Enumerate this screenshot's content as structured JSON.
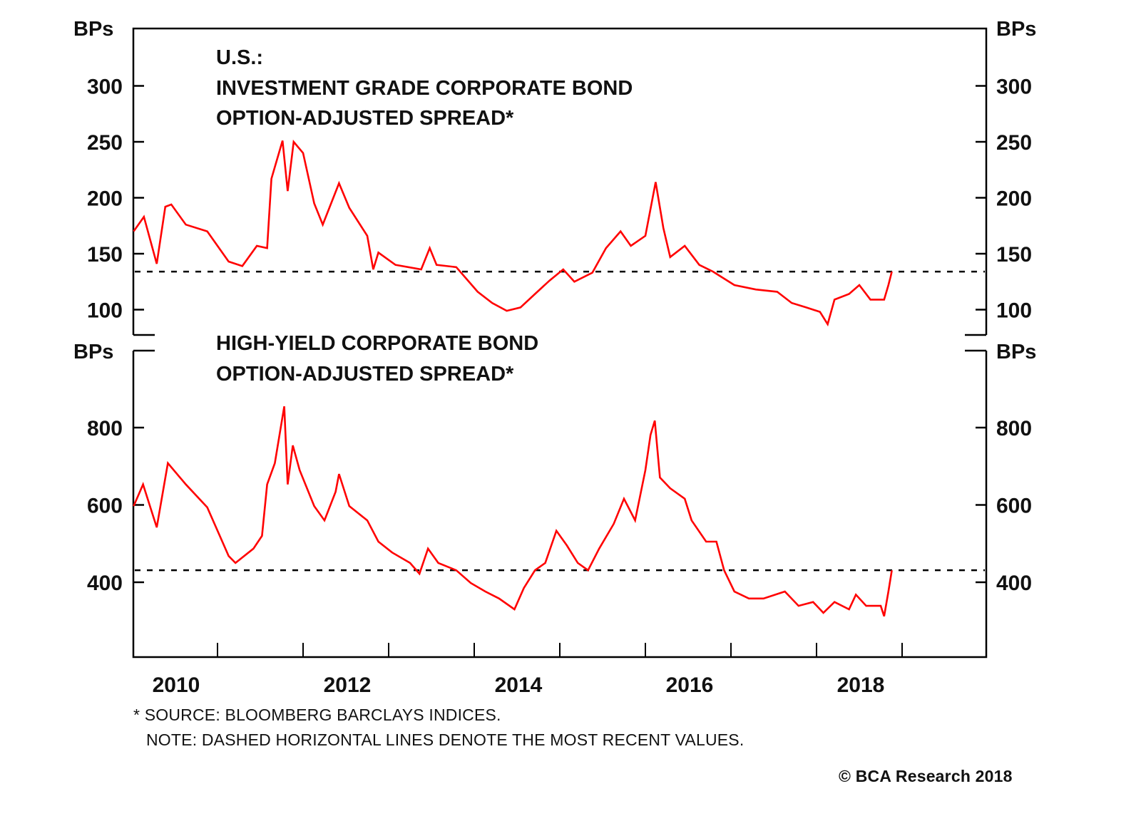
{
  "chart_data": [
    {
      "type": "line",
      "title": "U.S.:\nINVESTMENT GRADE CORPORATE BOND\nOPTION-ADJUSTED SPREAD*",
      "title_lines": [
        "U.S.:",
        "INVESTMENT GRADE CORPORATE BOND",
        "OPTION-ADJUSTED SPREAD*"
      ],
      "ylabel_left": "BPs",
      "ylabel_right": "BPs",
      "ylim": [
        72,
        340
      ],
      "yticks": [
        100,
        150,
        200,
        250,
        300
      ],
      "ytick_labels": [
        "100",
        "150",
        "200",
        "250",
        "300"
      ],
      "xlim": [
        2010.0,
        2020.0
      ],
      "grid": false,
      "line_color": "#ff0000",
      "reference_line": {
        "value": 134,
        "style": "dashed",
        "color": "#000000",
        "meaning": "most recent value"
      },
      "series": [
        {
          "name": "Investment Grade OAS",
          "x": [
            2010.02,
            2010.14,
            2010.29,
            2010.39,
            2010.46,
            2010.63,
            2010.88,
            2011.13,
            2011.29,
            2011.46,
            2011.58,
            2011.63,
            2011.76,
            2011.82,
            2011.89,
            2012.0,
            2012.13,
            2012.23,
            2012.42,
            2012.54,
            2012.75,
            2012.82,
            2012.88,
            2013.08,
            2013.38,
            2013.48,
            2013.56,
            2013.79,
            2014.04,
            2014.21,
            2014.38,
            2014.54,
            2014.71,
            2014.88,
            2015.04,
            2015.17,
            2015.38,
            2015.54,
            2015.71,
            2015.83,
            2016.0,
            2016.08,
            2016.12,
            2016.21,
            2016.29,
            2016.46,
            2016.63,
            2016.79,
            2017.04,
            2017.29,
            2017.54,
            2017.71,
            2017.88,
            2018.04,
            2018.13,
            2018.21,
            2018.38,
            2018.5,
            2018.63,
            2018.79,
            2018.84,
            2018.88
          ],
          "y": [
            170,
            183,
            141,
            192,
            194,
            176,
            170,
            143,
            139,
            157,
            155,
            217,
            251,
            206,
            250,
            240,
            195,
            176,
            213,
            191,
            166,
            136,
            151,
            140,
            136,
            155,
            140,
            138,
            116,
            106,
            99,
            102,
            114,
            126,
            136,
            125,
            133,
            155,
            170,
            157,
            166,
            198,
            214,
            173,
            147,
            157,
            140,
            134,
            122,
            118,
            116,
            106,
            102,
            98,
            87,
            109,
            114,
            122,
            109,
            109,
            122,
            134
          ]
        }
      ]
    },
    {
      "type": "line",
      "title": "HIGH-YIELD CORPORATE BOND\nOPTION-ADJUSTED SPREAD*",
      "title_lines": [
        "HIGH-YIELD CORPORATE BOND",
        "OPTION-ADJUSTED SPREAD*"
      ],
      "ylabel_left": "BPs",
      "ylabel_right": "BPs",
      "ylim": [
        230,
        990
      ],
      "yticks": [
        400,
        600,
        800
      ],
      "ytick_labels": [
        "400",
        "600",
        "800"
      ],
      "xlim": [
        2010.0,
        2020.0
      ],
      "xticks": [
        2011,
        2012,
        2013,
        2014,
        2015,
        2016,
        2017,
        2018,
        2019
      ],
      "xtick_labels": [
        "2010",
        "2012",
        "2014",
        "2016",
        "2018"
      ],
      "xtick_label_positions": [
        2010.5,
        2012.5,
        2014.5,
        2016.5,
        2018.5
      ],
      "grid": false,
      "line_color": "#ff0000",
      "reference_line": {
        "value": 431,
        "style": "dashed",
        "color": "#000000",
        "meaning": "most recent value"
      },
      "series": [
        {
          "name": "High-Yield OAS",
          "x": [
            2010.02,
            2010.13,
            2010.29,
            2010.42,
            2010.63,
            2010.88,
            2011.13,
            2011.21,
            2011.42,
            2011.52,
            2011.58,
            2011.67,
            2011.78,
            2011.82,
            2011.88,
            2011.96,
            2012.13,
            2012.25,
            2012.38,
            2012.42,
            2012.54,
            2012.75,
            2012.88,
            2013.04,
            2013.25,
            2013.36,
            2013.46,
            2013.58,
            2013.79,
            2013.96,
            2014.13,
            2014.29,
            2014.47,
            2014.58,
            2014.71,
            2014.83,
            2014.96,
            2015.08,
            2015.21,
            2015.33,
            2015.46,
            2015.63,
            2015.75,
            2015.88,
            2016.0,
            2016.06,
            2016.11,
            2016.17,
            2016.29,
            2016.46,
            2016.54,
            2016.71,
            2016.83,
            2016.92,
            2017.04,
            2017.21,
            2017.38,
            2017.63,
            2017.79,
            2017.96,
            2018.08,
            2018.21,
            2018.38,
            2018.46,
            2018.58,
            2018.75,
            2018.79,
            2018.84,
            2018.88
          ],
          "y": [
            597,
            653,
            542,
            708,
            653,
            594,
            468,
            450,
            487,
            520,
            653,
            708,
            855,
            653,
            754,
            690,
            597,
            560,
            634,
            680,
            597,
            560,
            505,
            477,
            450,
            422,
            487,
            450,
            431,
            398,
            376,
            358,
            330,
            385,
            431,
            450,
            533,
            496,
            450,
            431,
            487,
            551,
            616,
            560,
            690,
            781,
            818,
            671,
            643,
            616,
            560,
            505,
            505,
            431,
            376,
            358,
            358,
            376,
            339,
            349,
            321,
            349,
            330,
            368,
            339,
            339,
            312,
            376,
            431
          ]
        }
      ]
    }
  ],
  "footnotes": {
    "source": "* SOURCE: BLOOMBERG BARCLAYS INDICES.",
    "note": "NOTE: DASHED HORIZONTAL LINES DENOTE THE MOST RECENT VALUES.",
    "copyright": "© BCA Research 2018"
  }
}
